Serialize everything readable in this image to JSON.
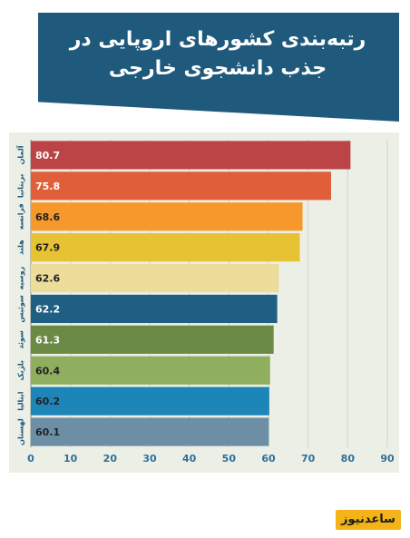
{
  "title": "رتبه‌بندی کشورهای اروپایی در جذب دانشجوی خارجی",
  "logo_text": "ساعدنیوز",
  "chart_data": {
    "type": "bar",
    "orientation": "horizontal",
    "title": "رتبه‌بندی کشورهای اروپایی در جذب دانشجوی خارجی",
    "categories": [
      "آلمان",
      "بریتانیا",
      "فرانسه",
      "هلند",
      "روسیه",
      "سوئیس",
      "سوئد",
      "بلژیک",
      "ایتالیا",
      "لهستان"
    ],
    "values": [
      80.7,
      75.8,
      68.6,
      67.9,
      62.6,
      62.2,
      61.3,
      60.4,
      60.2,
      60.1
    ],
    "bar_colors": [
      "#bc4446",
      "#e05f3a",
      "#f6982c",
      "#e7c232",
      "#ecdd9a",
      "#1f5f82",
      "#6b8a46",
      "#8fae5e",
      "#1e85b8",
      "#6c8fa6"
    ],
    "value_label_colors": [
      "#ffffff",
      "#ffffff",
      "#222222",
      "#222222",
      "#222222",
      "#ffffff",
      "#ffffff",
      "#222222",
      "#222222",
      "#222222"
    ],
    "xticks": [
      0,
      10,
      20,
      30,
      40,
      50,
      60,
      70,
      80,
      90
    ],
    "xlim": [
      0,
      90
    ],
    "grid": true,
    "tick_color": "#2f6f98"
  }
}
